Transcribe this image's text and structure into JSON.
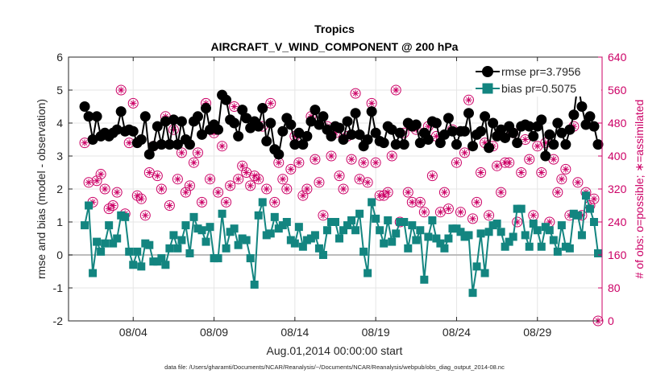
{
  "chart_data": {
    "type": "line",
    "title": "Tropics",
    "subtitle": "AIRCRAFT_V_WIND_COMPONENT @ 200 hPa",
    "xlabel": "Aug.01,2014 00:00:00 start",
    "ylabel_left": "rmse and bias (model - observation)",
    "ylabel_right": "# of obs: o=possible; ∗=assimilated",
    "footnote": "data file: /Users/gharamti/Documents/NCAR/Reanalysis/~/Documents/NCAR/Reanalysis/webpub/obs_diag_output_2014-08.nc",
    "x_range": [
      0,
      33
    ],
    "x_ticks": [
      4,
      9,
      14,
      19,
      24,
      29
    ],
    "x_tick_labels": [
      "08/04",
      "08/09",
      "08/14",
      "08/19",
      "08/24",
      "08/29"
    ],
    "y_left_range": [
      -2,
      6
    ],
    "y_left_ticks": [
      -2,
      -1,
      0,
      1,
      2,
      3,
      4,
      5,
      6
    ],
    "y_right_range": [
      0,
      640
    ],
    "y_right_ticks": [
      0,
      80,
      160,
      240,
      320,
      400,
      480,
      560,
      640
    ],
    "zero_line": 0,
    "grid": true,
    "legend_location": "top-right",
    "colors": {
      "rmse": "#000000",
      "bias": "#138580",
      "obs": "#cc0066",
      "zero": "#b3b3b3"
    },
    "series": [
      {
        "name": "rmse pr=3.7956",
        "axis": "left",
        "x": [
          1.0,
          1.25,
          1.5,
          1.75,
          2.0,
          2.25,
          2.5,
          2.75,
          3.0,
          3.25,
          3.5,
          3.75,
          4.0,
          4.25,
          4.5,
          4.75,
          5.0,
          5.25,
          5.5,
          5.75,
          6.0,
          6.25,
          6.5,
          6.75,
          7.0,
          7.25,
          7.5,
          7.75,
          8.0,
          8.25,
          8.5,
          8.75,
          9.0,
          9.25,
          9.5,
          9.75,
          10.0,
          10.25,
          10.5,
          10.75,
          11.0,
          11.25,
          11.5,
          11.75,
          12.0,
          12.25,
          12.5,
          12.75,
          13.0,
          13.25,
          13.5,
          13.75,
          14.0,
          14.25,
          14.5,
          14.75,
          15.0,
          15.25,
          15.5,
          15.75,
          16.0,
          16.25,
          16.5,
          16.75,
          17.0,
          17.25,
          17.5,
          17.75,
          18.0,
          18.25,
          18.5,
          18.75,
          19.0,
          19.25,
          19.5,
          19.75,
          20.0,
          20.25,
          20.5,
          20.75,
          21.0,
          21.25,
          21.5,
          21.75,
          22.0,
          22.25,
          22.5,
          22.75,
          23.0,
          23.25,
          23.5,
          23.75,
          24.0,
          24.25,
          24.5,
          24.75,
          25.0,
          25.25,
          25.5,
          25.75,
          26.0,
          26.25,
          26.5,
          26.75,
          27.0,
          27.25,
          27.5,
          27.75,
          28.0,
          28.25,
          28.5,
          28.75,
          29.0,
          29.25,
          29.5,
          29.75,
          30.0,
          30.25,
          30.5,
          30.75,
          31.0,
          31.25,
          31.5,
          31.75,
          32.0,
          32.25,
          32.5,
          32.75
        ],
        "values": [
          4.5,
          4.2,
          3.5,
          4.2,
          3.6,
          3.7,
          3.6,
          3.7,
          3.8,
          4.35,
          3.75,
          3.8,
          3.75,
          3.4,
          3.5,
          4.2,
          3.05,
          3.3,
          3.9,
          3.35,
          4.05,
          3.35,
          4.1,
          3.35,
          4.05,
          3.5,
          3.35,
          4.05,
          4.2,
          3.65,
          4.45,
          3.8,
          3.95,
          3.8,
          4.85,
          4.7,
          4.1,
          4.0,
          3.6,
          4.4,
          4.15,
          3.85,
          4.05,
          3.9,
          4.45,
          3.45,
          4.0,
          3.2,
          3.05,
          3.75,
          4.15,
          3.95,
          3.35,
          3.7,
          3.35,
          3.6,
          4.05,
          4.4,
          3.95,
          4.2,
          3.8,
          3.6,
          3.9,
          3.85,
          3.5,
          4.05,
          3.65,
          4.3,
          3.65,
          3.3,
          3.5,
          4.35,
          3.7,
          3.45,
          3.4,
          3.9,
          3.8,
          3.35,
          3.7,
          3.35,
          4.0,
          3.9,
          3.95,
          3.4,
          3.7,
          3.5,
          4.05,
          4.0,
          3.4,
          3.65,
          4.15,
          3.75,
          3.35,
          3.75,
          3.75,
          4.3,
          3.3,
          3.65,
          3.75,
          4.2,
          3.25,
          4.0,
          3.6,
          3.8,
          3.55,
          3.9,
          3.7,
          3.4,
          3.9,
          3.95,
          3.9,
          3.6,
          3.9,
          4.1,
          3.0,
          3.65,
          3.35,
          4.0,
          3.7,
          3.35,
          3.8,
          4.25,
          5.2,
          4.5,
          3.95,
          4.2,
          3.9,
          3.35
        ]
      },
      {
        "name": "bias pr=0.5075",
        "axis": "left",
        "x": [
          1.0,
          1.25,
          1.5,
          1.75,
          2.0,
          2.25,
          2.5,
          2.75,
          3.0,
          3.25,
          3.5,
          3.75,
          4.0,
          4.25,
          4.5,
          4.75,
          5.0,
          5.25,
          5.5,
          5.75,
          6.0,
          6.25,
          6.5,
          6.75,
          7.0,
          7.25,
          7.5,
          7.75,
          8.0,
          8.25,
          8.5,
          8.75,
          9.0,
          9.25,
          9.5,
          9.75,
          10.0,
          10.25,
          10.5,
          10.75,
          11.0,
          11.25,
          11.5,
          11.75,
          12.0,
          12.25,
          12.5,
          12.75,
          13.0,
          13.25,
          13.5,
          13.75,
          14.0,
          14.25,
          14.5,
          14.75,
          15.0,
          15.25,
          15.5,
          15.75,
          16.0,
          16.25,
          16.5,
          16.75,
          17.0,
          17.25,
          17.5,
          17.75,
          18.0,
          18.25,
          18.5,
          18.75,
          19.0,
          19.25,
          19.5,
          19.75,
          20.0,
          20.25,
          20.5,
          20.75,
          21.0,
          21.25,
          21.5,
          21.75,
          22.0,
          22.25,
          22.5,
          22.75,
          23.0,
          23.25,
          23.5,
          23.75,
          24.0,
          24.25,
          24.5,
          24.75,
          25.0,
          25.25,
          25.5,
          25.75,
          26.0,
          26.25,
          26.5,
          26.75,
          27.0,
          27.25,
          27.5,
          27.75,
          28.0,
          28.25,
          28.5,
          28.75,
          29.0,
          29.25,
          29.5,
          29.75,
          30.0,
          30.25,
          30.5,
          30.75,
          31.0,
          31.25,
          31.5,
          31.75,
          32.0,
          32.25,
          32.5,
          32.75
        ],
        "values": [
          0.9,
          1.5,
          -0.55,
          0.4,
          0.1,
          0.35,
          0.9,
          0.35,
          0.5,
          1.2,
          1.15,
          0.1,
          -0.3,
          0.1,
          -0.35,
          0.35,
          0.3,
          -0.2,
          -0.2,
          -0.1,
          -0.3,
          0.2,
          0.6,
          0.2,
          0.45,
          0.9,
          0.05,
          1.15,
          0.8,
          0.75,
          0.4,
          0.85,
          -0.1,
          -0.1,
          1.25,
          0.2,
          0.7,
          0.8,
          0.3,
          0.5,
          0.45,
          -0.1,
          -0.9,
          1.2,
          1.6,
          0.6,
          0.65,
          1.15,
          0.8,
          0.9,
          1.0,
          0.45,
          0.35,
          0.85,
          0.25,
          0.45,
          0.5,
          0.6,
          0.2,
          0.0,
          0.75,
          1.0,
          1.0,
          0.5,
          0.75,
          0.9,
          1.05,
          0.75,
          1.25,
          0.1,
          -0.55,
          1.6,
          1.1,
          0.75,
          0.35,
          1.05,
          0.4,
          0.65,
          1.0,
          1.0,
          0.2,
          0.9,
          0.45,
          0.75,
          -0.75,
          0.55,
          1.05,
          0.5,
          0.35,
          0.2,
          0.5,
          0.8,
          0.8,
          0.7,
          0.55,
          0.6,
          -1.15,
          -0.35,
          0.65,
          -0.55,
          0.7,
          0.9,
          0.95,
          0.7,
          0.25,
          0.4,
          0.55,
          1.4,
          1.4,
          0.6,
          0.25,
          0.95,
          0.75,
          0.25,
          0.85,
          0.75,
          0.45,
          0.1,
          0.9,
          0.25,
          0.2,
          1.25,
          1.2,
          0.6,
          1.8,
          1.4,
          1.0,
          0.05
        ]
      },
      {
        "name": "# obs possible",
        "axis": "right",
        "x": [
          1.0,
          1.25,
          1.5,
          1.75,
          2.0,
          2.25,
          2.5,
          2.75,
          3.0,
          3.25,
          3.5,
          3.75,
          4.0,
          4.25,
          4.5,
          4.75,
          5.0,
          5.25,
          5.5,
          5.75,
          6.0,
          6.25,
          6.5,
          6.75,
          7.0,
          7.25,
          7.5,
          7.75,
          8.0,
          8.25,
          8.5,
          8.75,
          9.0,
          9.25,
          9.5,
          9.75,
          10.0,
          10.25,
          10.5,
          10.75,
          11.0,
          11.25,
          11.5,
          11.75,
          12.0,
          12.25,
          12.5,
          12.75,
          13.0,
          13.25,
          13.5,
          13.75,
          14.0,
          14.25,
          14.5,
          14.75,
          15.0,
          15.25,
          15.5,
          15.75,
          16.0,
          16.25,
          16.5,
          16.75,
          17.0,
          17.25,
          17.5,
          17.75,
          18.0,
          18.25,
          18.5,
          18.75,
          19.0,
          19.25,
          19.5,
          19.75,
          20.0,
          20.25,
          20.5,
          20.75,
          21.0,
          21.25,
          21.5,
          21.75,
          22.0,
          22.25,
          22.5,
          22.75,
          23.0,
          23.25,
          23.5,
          23.75,
          24.0,
          24.25,
          24.5,
          24.75,
          25.0,
          25.25,
          25.5,
          25.75,
          26.0,
          26.25,
          26.5,
          26.75,
          27.0,
          27.25,
          27.5,
          27.75,
          28.0,
          28.25,
          28.5,
          28.75,
          29.0,
          29.25,
          29.5,
          29.75,
          30.0,
          30.25,
          30.5,
          30.75,
          31.0,
          31.25,
          31.5,
          31.75,
          32.0,
          32.25,
          32.5,
          32.75
        ],
        "values": [
          432,
          336,
          288,
          340,
          356,
          320,
          272,
          280,
          312,
          560,
          260,
          432,
          528,
          304,
          296,
          256,
          360,
          424,
          352,
          320,
          496,
          280,
          464,
          344,
          408,
          312,
          328,
          384,
          408,
          288,
          528,
          344,
          456,
          312,
          424,
          288,
          328,
          520,
          344,
          376,
          360,
          328,
          352,
          344,
          472,
          320,
          528,
          288,
          384,
          344,
          320,
          368,
          448,
          384,
          304,
          320,
          496,
          392,
          336,
          256,
          472,
          400,
          456,
          352,
          320,
          448,
          392,
          552,
          344,
          384,
          336,
          528,
          384,
          304,
          304,
          312,
          400,
          560,
          240,
          456,
          312,
          288,
          464,
          288,
          264,
          472,
          352,
          448,
          264,
          312,
          272,
          464,
          384,
          264,
          408,
          536,
          248,
          288,
          360,
          432,
          256,
          424,
          376,
          312,
          384,
          384,
          456,
          240,
          360,
          440,
          392,
          256,
          424,
          360,
          432,
          240,
          392,
          312,
          344,
          368,
          256,
          472,
          336,
          256,
          312,
          280,
          296,
          0
        ]
      },
      {
        "name": "# obs assimilated",
        "axis": "right",
        "x": [
          1.0,
          1.25,
          1.5,
          1.75,
          2.0,
          2.25,
          2.5,
          2.75,
          3.0,
          3.25,
          3.5,
          3.75,
          4.0,
          4.25,
          4.5,
          4.75,
          5.0,
          5.25,
          5.5,
          5.75,
          6.0,
          6.25,
          6.5,
          6.75,
          7.0,
          7.25,
          7.5,
          7.75,
          8.0,
          8.25,
          8.5,
          8.75,
          9.0,
          9.25,
          9.5,
          9.75,
          10.0,
          10.25,
          10.5,
          10.75,
          11.0,
          11.25,
          11.5,
          11.75,
          12.0,
          12.25,
          12.5,
          12.75,
          13.0,
          13.25,
          13.5,
          13.75,
          14.0,
          14.25,
          14.5,
          14.75,
          15.0,
          15.25,
          15.5,
          15.75,
          16.0,
          16.25,
          16.5,
          16.75,
          17.0,
          17.25,
          17.5,
          17.75,
          18.0,
          18.25,
          18.5,
          18.75,
          19.0,
          19.25,
          19.5,
          19.75,
          20.0,
          20.25,
          20.5,
          20.75,
          21.0,
          21.25,
          21.5,
          21.75,
          22.0,
          22.25,
          22.5,
          22.75,
          23.0,
          23.25,
          23.5,
          23.75,
          24.0,
          24.25,
          24.5,
          24.75,
          25.0,
          25.25,
          25.5,
          25.75,
          26.0,
          26.25,
          26.5,
          26.75,
          27.0,
          27.25,
          27.5,
          27.75,
          28.0,
          28.25,
          28.5,
          28.75,
          29.0,
          29.25,
          29.5,
          29.75,
          30.0,
          30.25,
          30.5,
          30.75,
          31.0,
          31.25,
          31.5,
          31.75,
          32.0,
          32.25,
          32.5,
          32.75
        ],
        "values": [
          432,
          336,
          288,
          340,
          356,
          320,
          272,
          280,
          312,
          560,
          260,
          432,
          528,
          304,
          296,
          256,
          360,
          424,
          352,
          320,
          496,
          280,
          464,
          344,
          408,
          312,
          328,
          384,
          408,
          288,
          528,
          344,
          456,
          312,
          424,
          288,
          328,
          520,
          344,
          376,
          360,
          328,
          352,
          344,
          472,
          320,
          528,
          288,
          384,
          344,
          320,
          368,
          448,
          384,
          304,
          320,
          496,
          392,
          336,
          256,
          472,
          400,
          456,
          352,
          320,
          448,
          392,
          552,
          344,
          384,
          336,
          528,
          384,
          304,
          304,
          312,
          400,
          560,
          240,
          456,
          312,
          288,
          464,
          288,
          264,
          472,
          352,
          448,
          264,
          312,
          272,
          464,
          384,
          264,
          408,
          536,
          248,
          288,
          360,
          432,
          256,
          424,
          376,
          312,
          384,
          384,
          456,
          240,
          360,
          440,
          392,
          256,
          424,
          360,
          432,
          240,
          392,
          312,
          344,
          368,
          256,
          472,
          336,
          256,
          312,
          280,
          296,
          0
        ]
      }
    ]
  }
}
